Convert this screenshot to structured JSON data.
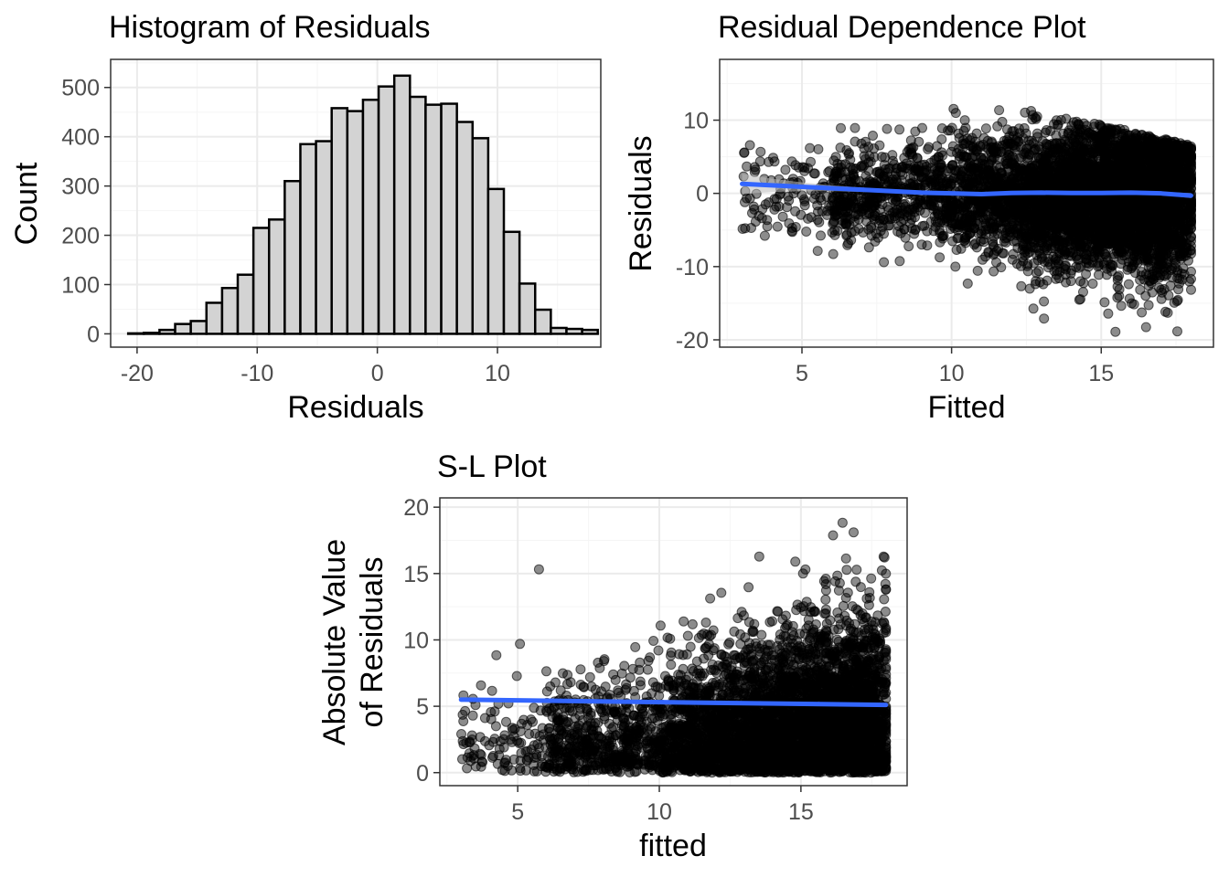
{
  "chart_data": [
    {
      "id": "hist",
      "type": "bar",
      "title": "Histogram of Residuals",
      "xlabel": "Residuals",
      "ylabel": "Count",
      "xlim": [
        -22.2,
        18.6
      ],
      "ylim": [
        -27,
        557
      ],
      "x_ticks": [
        -20,
        -10,
        0,
        10
      ],
      "x_tick_labels": [
        "-20",
        "-10",
        "0",
        "10"
      ],
      "y_ticks": [
        0,
        100,
        200,
        300,
        400,
        500
      ],
      "y_tick_labels": [
        "0",
        "100",
        "200",
        "300",
        "400",
        "500"
      ],
      "bin_start": -20.74,
      "bin_width": 1.303,
      "counts": [
        1,
        2,
        8,
        20,
        26,
        63,
        93,
        120,
        215,
        232,
        310,
        385,
        391,
        458,
        452,
        475,
        502,
        524,
        481,
        465,
        467,
        430,
        397,
        294,
        207,
        102,
        49,
        12,
        10,
        8
      ],
      "bar_color": "#d3d3d3",
      "edge_color": "#000000"
    },
    {
      "id": "rdp",
      "type": "scatter",
      "title": "Residual Dependence Plot",
      "xlabel": "Fitted",
      "ylabel": "Residuals",
      "xlim": [
        2.25,
        18.75
      ],
      "ylim": [
        -21.0,
        18.3
      ],
      "x_ticks": [
        5,
        10,
        15
      ],
      "x_tick_labels": [
        "5",
        "10",
        "15"
      ],
      "y_ticks": [
        -20,
        -10,
        0,
        10
      ],
      "y_tick_labels": [
        "-20",
        "-10",
        "0",
        "10"
      ],
      "n_points_approx": 10000,
      "point_color": "#000000",
      "point_alpha": 0.45,
      "smooth": {
        "method": "loess",
        "color": "#3366ff",
        "x": [
          3.0,
          4.0,
          5.0,
          6.0,
          7.0,
          8.0,
          9.0,
          10.0,
          11.0,
          12.0,
          13.0,
          14.0,
          15.0,
          16.0,
          17.0,
          18.0
        ],
        "y": [
          1.3,
          1.1,
          0.9,
          0.7,
          0.5,
          0.3,
          0.1,
          0.0,
          -0.1,
          0.05,
          0.1,
          0.05,
          0.05,
          0.1,
          0.0,
          -0.3
        ],
        "se_halfwidth": [
          1.4,
          0.9,
          0.6,
          0.4,
          0.3,
          0.2,
          0.15,
          0.12,
          0.12,
          0.12,
          0.12,
          0.12,
          0.12,
          0.15,
          0.2,
          0.35
        ],
        "band_color": "#bbbbbb"
      }
    },
    {
      "id": "sl",
      "type": "scatter",
      "title": "S-L Plot",
      "xlabel": "fitted",
      "ylabel_lines": [
        "Absolute Value",
        "of Residuals"
      ],
      "xlim": [
        2.25,
        18.75
      ],
      "ylim": [
        -0.98,
        20.7
      ],
      "x_ticks": [
        5,
        10,
        15
      ],
      "x_tick_labels": [
        "5",
        "10",
        "15"
      ],
      "y_ticks": [
        0,
        5,
        10,
        15,
        20
      ],
      "y_tick_labels": [
        "0",
        "5",
        "10",
        "15",
        "20"
      ],
      "n_points_approx": 10000,
      "point_color": "#000000",
      "point_alpha": 0.45,
      "smooth": {
        "method": "lm",
        "color": "#3366ff",
        "x": [
          3.0,
          18.0
        ],
        "y": [
          5.5,
          5.1
        ]
      }
    }
  ]
}
